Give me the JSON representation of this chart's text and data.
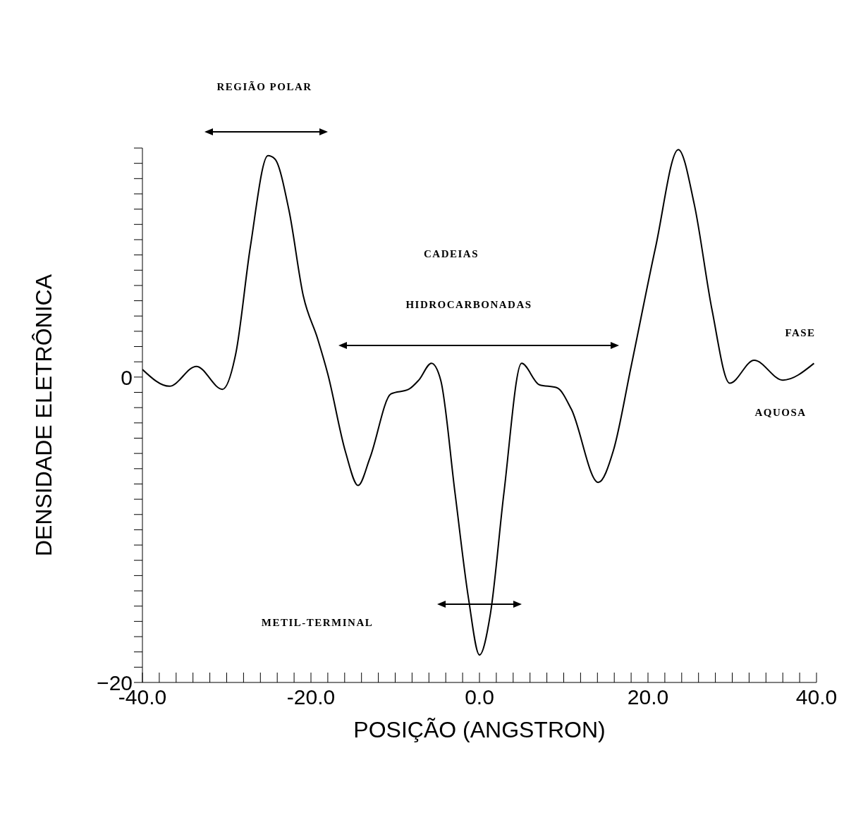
{
  "chart_data": {
    "type": "line",
    "xlabel": "POSIÇÃO    (ANGSTRON)",
    "ylabel": "DENSIDADE ELETRÔNICA",
    "annotations": [
      "REGIÃO POLAR",
      "CADEIAS",
      "HIDROCARBONADAS",
      "FASE",
      "AQUOSA",
      "METIL-TERMINAL"
    ],
    "xlim": [
      -40,
      40
    ],
    "ylim": [
      -20,
      15
    ],
    "xticks": [
      {
        "value": -40,
        "label": "-40.0"
      },
      {
        "value": -38,
        "label": null
      },
      {
        "value": -36,
        "label": null
      },
      {
        "value": -34,
        "label": null
      },
      {
        "value": -32,
        "label": null
      },
      {
        "value": -30,
        "label": null
      },
      {
        "value": -28,
        "label": null
      },
      {
        "value": -26,
        "label": null
      },
      {
        "value": -24,
        "label": null
      },
      {
        "value": -22,
        "label": null
      },
      {
        "value": -20,
        "label": "-20.0"
      },
      {
        "value": -18,
        "label": null
      },
      {
        "value": -16,
        "label": null
      },
      {
        "value": -14,
        "label": null
      },
      {
        "value": -12,
        "label": null
      },
      {
        "value": -10,
        "label": null
      },
      {
        "value": -8,
        "label": null
      },
      {
        "value": -6,
        "label": null
      },
      {
        "value": -4,
        "label": null
      },
      {
        "value": -2,
        "label": null
      },
      {
        "value": 0,
        "label": "0.0"
      },
      {
        "value": 2,
        "label": null
      },
      {
        "value": 4,
        "label": null
      },
      {
        "value": 6,
        "label": null
      },
      {
        "value": 8,
        "label": null
      },
      {
        "value": 10,
        "label": null
      },
      {
        "value": 12,
        "label": null
      },
      {
        "value": 14,
        "label": null
      },
      {
        "value": 16,
        "label": null
      },
      {
        "value": 18,
        "label": null
      },
      {
        "value": 20,
        "label": "20.0"
      },
      {
        "value": 22,
        "label": null
      },
      {
        "value": 24,
        "label": null
      },
      {
        "value": 26,
        "label": null
      },
      {
        "value": 28,
        "label": null
      },
      {
        "value": 30,
        "label": null
      },
      {
        "value": 32,
        "label": null
      },
      {
        "value": 34,
        "label": null
      },
      {
        "value": 36,
        "label": null
      },
      {
        "value": 38,
        "label": null
      },
      {
        "value": 40,
        "label": "40.0"
      }
    ],
    "yticks": [
      {
        "value": -20,
        "label": "−20"
      },
      {
        "value": -19,
        "label": null
      },
      {
        "value": -18,
        "label": null
      },
      {
        "value": -17,
        "label": null
      },
      {
        "value": -16,
        "label": null
      },
      {
        "value": -15,
        "label": null
      },
      {
        "value": -14,
        "label": null
      },
      {
        "value": -13,
        "label": null
      },
      {
        "value": -12,
        "label": null
      },
      {
        "value": -11,
        "label": null
      },
      {
        "value": -10,
        "label": null
      },
      {
        "value": -9,
        "label": null
      },
      {
        "value": -8,
        "label": null
      },
      {
        "value": -7,
        "label": null
      },
      {
        "value": -6,
        "label": null
      },
      {
        "value": -5,
        "label": null
      },
      {
        "value": -4,
        "label": null
      },
      {
        "value": -3,
        "label": null
      },
      {
        "value": -2,
        "label": null
      },
      {
        "value": -1,
        "label": null
      },
      0,
      {
        "value": 1,
        "label": null
      },
      {
        "value": 2,
        "label": null
      },
      {
        "value": 3,
        "label": null
      },
      {
        "value": 4,
        "label": null
      },
      {
        "value": 5,
        "label": null
      },
      {
        "value": 6,
        "label": null
      },
      {
        "value": 7,
        "label": null
      },
      {
        "value": 8,
        "label": null
      },
      {
        "value": 9,
        "label": null
      },
      {
        "value": 10,
        "label": null
      },
      {
        "value": 11,
        "label": null
      },
      {
        "value": 12,
        "label": null
      },
      {
        "value": 13,
        "label": null
      },
      {
        "value": 14,
        "label": null
      },
      {
        "value": 15,
        "label": null
      }
    ],
    "x": [
      -40,
      -36.8,
      -33.6,
      -30.5,
      -28.9,
      -27.2,
      -25.1,
      -24.3,
      -22.6,
      -20.9,
      -19.2,
      -18,
      -15.9,
      -14.4,
      -13,
      -10.5,
      -8.4,
      -7.2,
      -5.7,
      -4.6,
      -2.9,
      -1.3,
      0,
      1.3,
      2.9,
      5,
      7.1,
      9.2,
      10.9,
      14.1,
      15.9,
      18,
      20.9,
      23.6,
      25.5,
      27.6,
      29.7,
      32.6,
      36,
      39.7
    ],
    "values": [
      0.5,
      -0.6,
      0.7,
      -0.8,
      1.6,
      8.5,
      14.5,
      14.3,
      10.9,
      5.3,
      2.5,
      0.2,
      -4.9,
      -7.1,
      -5.3,
      -1.1,
      -0.8,
      -0.2,
      0.9,
      -0.2,
      -7.6,
      -14.5,
      -18.2,
      -15.5,
      -7.6,
      0.9,
      -0.5,
      -0.7,
      -2.1,
      -6.9,
      -4.8,
      0.7,
      8.5,
      14.9,
      11.3,
      4.4,
      -0.4,
      1.1,
      -0.2,
      0.9
    ],
    "color": "#000000",
    "line_style": "solid"
  }
}
